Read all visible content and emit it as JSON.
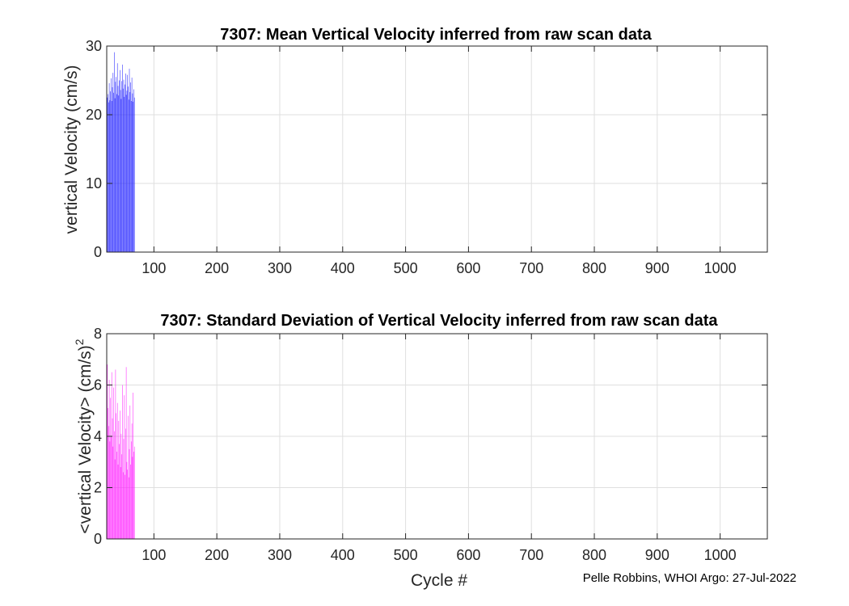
{
  "chart_data": [
    {
      "type": "bar",
      "title": "7307: Mean Vertical Velocity inferred from raw scan data",
      "xlabel": "",
      "ylabel": "vertical Velocity (cm/s)",
      "xlim": [
        25,
        1075
      ],
      "ylim": [
        0,
        30
      ],
      "xticks": [
        100,
        200,
        300,
        400,
        500,
        600,
        700,
        800,
        900,
        1000
      ],
      "yticks": [
        0,
        10,
        20,
        30
      ],
      "grid": true,
      "color": "#1f1fff",
      "x_start": 26,
      "values": [
        22.5,
        23.0,
        21.8,
        24.6,
        22.1,
        23.4,
        25.3,
        22.0,
        24.0,
        26.1,
        23.2,
        29.1,
        22.4,
        24.8,
        25.5,
        23.0,
        27.5,
        24.2,
        22.8,
        25.0,
        26.5,
        23.6,
        22.3,
        24.9,
        27.3,
        23.8,
        25.1,
        22.6,
        24.4,
        26.0,
        22.9,
        23.5,
        25.8,
        24.1,
        22.2,
        26.7,
        23.3,
        24.7,
        22.0,
        25.4,
        23.1,
        21.9,
        23.7,
        22.5
      ]
    },
    {
      "type": "bar",
      "title": "7307: Standard Deviation of Vertical Velocity inferred from raw scan data",
      "xlabel": "Cycle #",
      "ylabel": "<vertical Velocity> (cm/s)",
      "ylabel_superscript": "2",
      "xlim": [
        25,
        1075
      ],
      "ylim": [
        0,
        8
      ],
      "xticks": [
        100,
        200,
        300,
        400,
        500,
        600,
        700,
        800,
        900,
        1000
      ],
      "yticks": [
        0,
        2,
        4,
        6,
        8
      ],
      "grid": true,
      "color": "#ff1fff",
      "x_start": 26,
      "values": [
        6.8,
        5.1,
        4.4,
        6.2,
        3.8,
        5.5,
        4.0,
        6.5,
        4.7,
        3.6,
        5.9,
        4.2,
        3.1,
        6.6,
        4.9,
        3.4,
        5.3,
        2.9,
        4.6,
        3.7,
        5.0,
        2.8,
        4.1,
        3.3,
        6.0,
        2.6,
        3.9,
        5.6,
        2.5,
        4.3,
        6.7,
        3.0,
        2.7,
        4.8,
        2.4,
        3.5,
        5.2,
        2.9,
        3.8,
        4.5,
        3.2,
        5.7,
        3.4,
        3.6
      ]
    }
  ],
  "credit": "Pelle Robbins, WHOI Argo: 27-Jul-2022"
}
